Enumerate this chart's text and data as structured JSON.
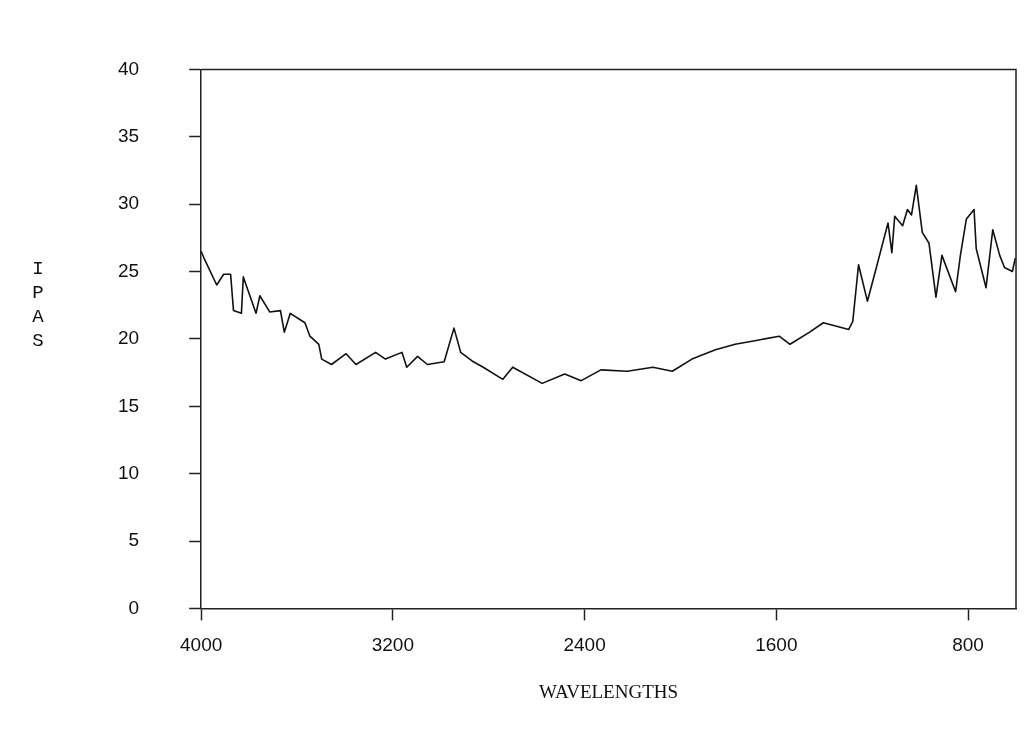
{
  "chart_data": {
    "type": "line",
    "xlabel": "WAVELENGTHS",
    "ylabel": "IPAS",
    "xlim": [
      4000,
      600
    ],
    "xticks": [
      4000,
      3200,
      2400,
      1600,
      800
    ],
    "ylim": [
      0,
      40
    ],
    "yticks": [
      0,
      5,
      10,
      15,
      20,
      25,
      30,
      35,
      40
    ],
    "grid": false,
    "legend": false,
    "marker": "none",
    "line_style": "solid",
    "series": [
      {
        "color": "#111111",
        "x": [
          4000,
          3988,
          3935,
          3906,
          3877,
          3865,
          3832,
          3824,
          3771,
          3755,
          3714,
          3669,
          3653,
          3628,
          3567,
          3546,
          3509,
          3497,
          3456,
          3395,
          3354,
          3272,
          3231,
          3162,
          3142,
          3097,
          3056,
          2986,
          2945,
          2917,
          2864,
          2823,
          2741,
          2700,
          2577,
          2483,
          2414,
          2332,
          2222,
          2115,
          2034,
          1952,
          1854,
          1772,
          1678,
          1588,
          1543,
          1461,
          1404,
          1298,
          1281,
          1257,
          1220,
          1187,
          1134,
          1118,
          1106,
          1073,
          1053,
          1036,
          1016,
          991,
          963,
          934,
          909,
          852,
          832,
          807,
          775,
          766,
          725,
          697,
          668,
          648,
          615,
          603
        ],
        "values": [
          26.5,
          26.0,
          24.0,
          24.8,
          24.8,
          22.1,
          21.9,
          24.6,
          21.9,
          23.2,
          22.0,
          22.1,
          20.5,
          21.9,
          21.2,
          20.2,
          19.6,
          18.5,
          18.1,
          18.9,
          18.1,
          19.0,
          18.5,
          19.0,
          17.9,
          18.7,
          18.1,
          18.3,
          20.8,
          19.0,
          18.3,
          17.9,
          17.0,
          17.9,
          16.7,
          17.4,
          16.9,
          17.7,
          17.6,
          17.9,
          17.6,
          18.5,
          19.2,
          19.6,
          19.9,
          20.2,
          19.6,
          20.5,
          21.2,
          20.7,
          21.3,
          25.5,
          22.8,
          25.0,
          28.6,
          26.4,
          29.1,
          28.4,
          29.6,
          29.2,
          31.4,
          27.9,
          27.1,
          23.1,
          26.2,
          23.5,
          26.2,
          28.9,
          29.6,
          26.7,
          23.8,
          28.1,
          26.2,
          25.3,
          25.0,
          26.0
        ]
      }
    ]
  }
}
